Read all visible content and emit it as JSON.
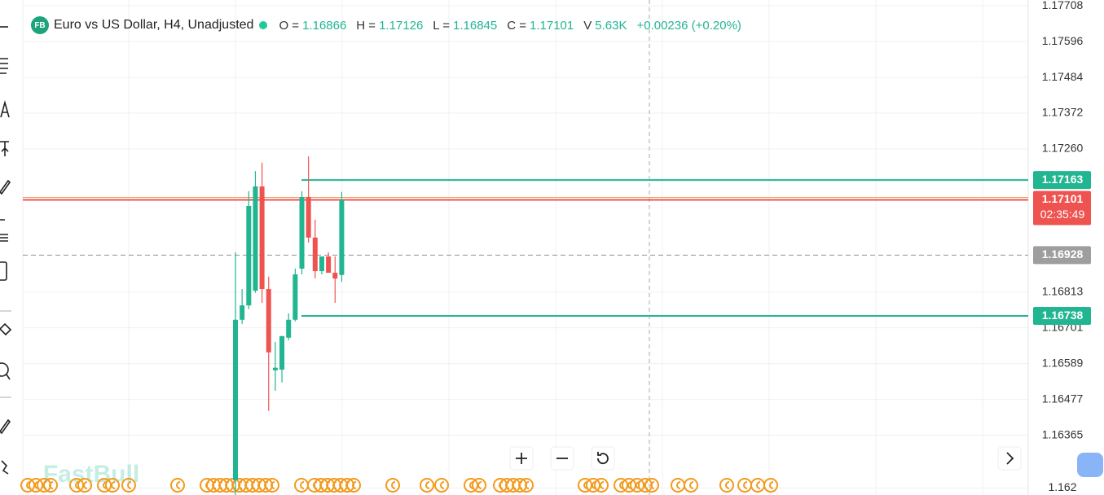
{
  "chart_data": {
    "type": "candlestick",
    "badge": "FB",
    "title": "Euro vs US Dollar, H4, Unadjusted",
    "legend": [
      {
        "label": "O =",
        "value": 1.16866
      },
      {
        "label": "H =",
        "value": 1.17126
      },
      {
        "label": "L =",
        "value": 1.16845
      },
      {
        "label": "C =",
        "value": 1.17101
      },
      {
        "label": "V",
        "value": 5630,
        "value_label": "5.63K"
      }
    ],
    "change": "+0.00236 (+0.20%)",
    "categories": [
      null,
      null,
      null,
      null,
      null,
      null,
      null,
      null,
      null,
      null,
      null,
      null,
      null,
      null,
      null,
      null,
      null
    ],
    "open": [
      1.16224,
      1.16726,
      1.16771,
      1.16817,
      1.17143,
      1.16822,
      1.16568,
      1.1657,
      1.1667,
      1.16726,
      1.16886,
      1.1711,
      1.16983,
      1.16878,
      1.16924,
      1.16873,
      1.16866
    ],
    "high": [
      1.16937,
      1.16822,
      1.17128,
      1.17191,
      1.17217,
      1.16861,
      1.16657,
      1.16675,
      1.16746,
      1.16886,
      1.17128,
      1.17237,
      1.17039,
      1.16924,
      1.16937,
      1.16924,
      1.17126
    ],
    "low": [
      1.16178,
      1.16713,
      1.16759,
      1.1681,
      1.16779,
      1.16441,
      1.16504,
      1.1653,
      1.16662,
      1.16721,
      1.16868,
      1.16967,
      1.16855,
      1.16868,
      1.16878,
      1.16779,
      1.16845
    ],
    "close": [
      1.16726,
      1.16771,
      1.17082,
      1.17143,
      1.16822,
      1.16624,
      1.16576,
      1.16675,
      1.16726,
      1.16868,
      1.1711,
      1.16983,
      1.16878,
      1.16924,
      1.16873,
      1.16855,
      1.17101
    ],
    "up_color": "#22b592",
    "down_color": "#ef5350",
    "ylim": [
      1.16178,
      1.17726
    ],
    "yticks": [
      1.17708,
      1.17596,
      1.17484,
      1.17372,
      {
        "value": 1.1726,
        "label": "1.17260"
      },
      1.16813,
      1.16701,
      1.16589,
      1.16477,
      1.16365,
      1.162
    ],
    "price_lines": [
      {
        "value": 1.17163,
        "color": "#22b592",
        "style": "solid"
      },
      {
        "value": 1.17101,
        "color": "#ef5350",
        "style": "solid",
        "countdown": "02:35:49"
      },
      {
        "value": 1.16928,
        "color": "#9e9e9e",
        "style": "dashed"
      },
      {
        "value": 1.16738,
        "color": "#22b592",
        "style": "solid"
      }
    ],
    "watermark": "FastBull",
    "grid": true
  }
}
